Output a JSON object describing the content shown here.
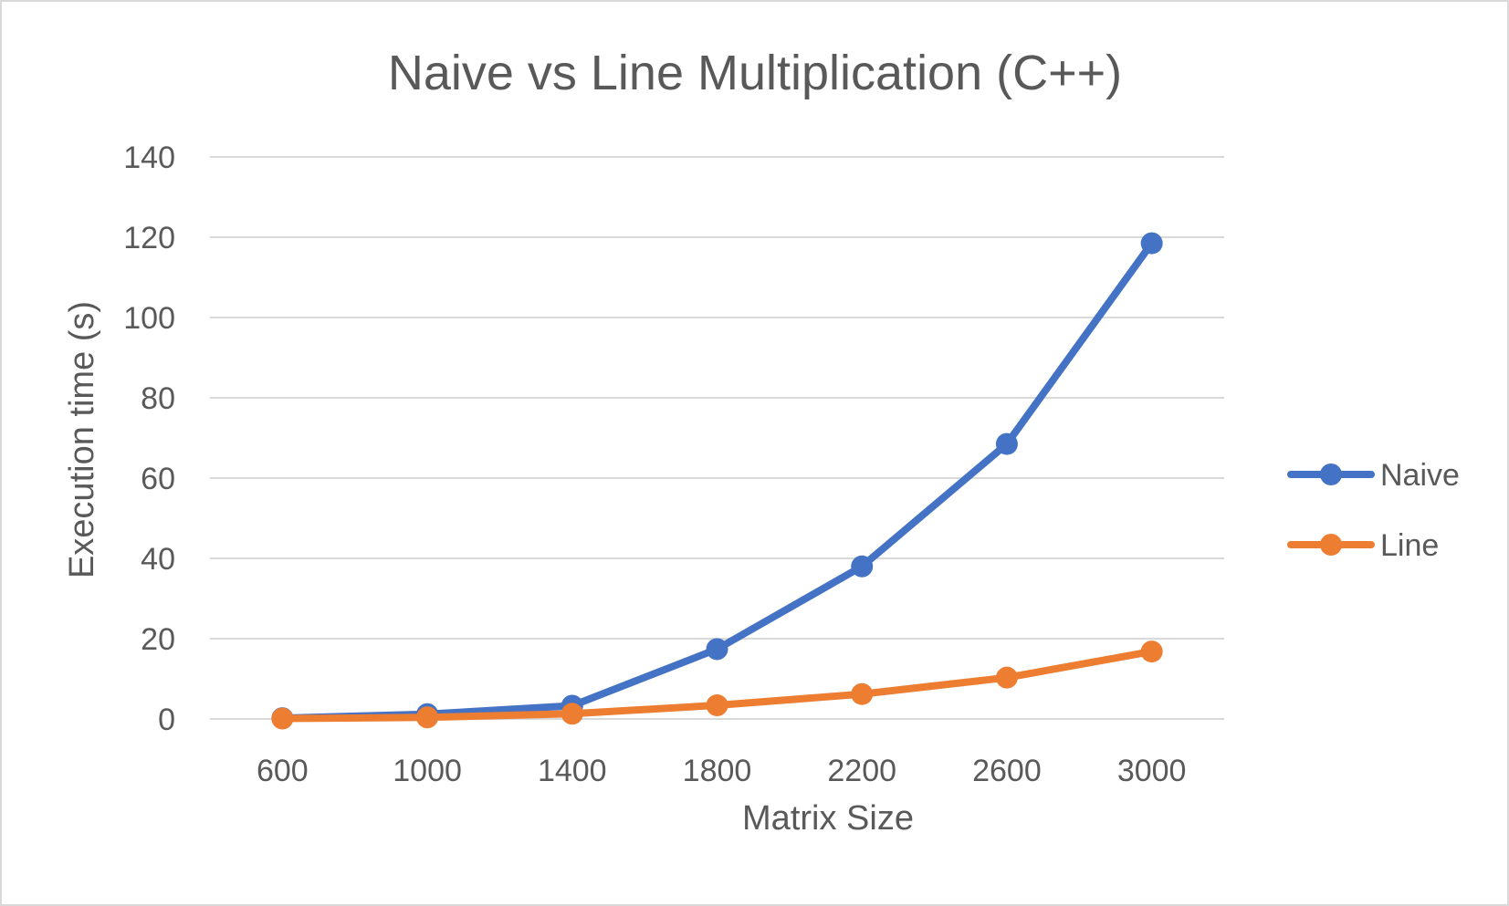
{
  "chart_data": {
    "type": "line",
    "title": "Naive vs Line Multiplication (C++)",
    "xlabel": "Matrix Size",
    "ylabel": "Execution time (s)",
    "categories": [
      "600",
      "1000",
      "1400",
      "1800",
      "2200",
      "2600",
      "3000"
    ],
    "ylim": [
      0,
      140
    ],
    "yticks": [
      0,
      20,
      40,
      60,
      80,
      100,
      120,
      140
    ],
    "grid": true,
    "legend_position": "right",
    "series": [
      {
        "name": "Naive",
        "color": "#4472c4",
        "values": [
          0.2,
          1.2,
          3.3,
          17.4,
          38.0,
          68.5,
          118.5
        ]
      },
      {
        "name": "Line",
        "color": "#ed7d31",
        "values": [
          0.1,
          0.4,
          1.3,
          3.4,
          6.2,
          10.3,
          16.8
        ]
      }
    ]
  }
}
